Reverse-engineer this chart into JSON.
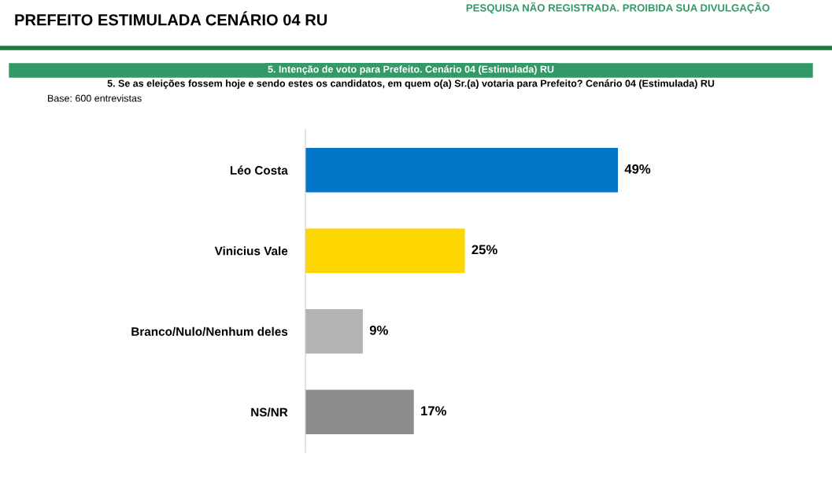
{
  "chart_data": {
    "type": "bar",
    "orientation": "horizontal",
    "title": "PREFEITO ESTIMULADA CENÁRIO 04 RU",
    "subtitle": "5. Intenção de voto para Prefeito. Cenário 04 (Estimulada) RU",
    "annotations": [
      "PESQUISA NÃO REGISTRADA. PROIBIDA SUA DIVULGAÇÃO",
      "5. Se as eleições fossem hoje e sendo estes os candidatos, em quem o(a) Sr.(a) votaria para Prefeito? Cenário 04 (Estimulada) RU",
      "Base: 600 entrevistas"
    ],
    "categories": [
      "Léo Costa",
      "Vinicius Vale",
      "Branco/Nulo/Nenhum deles",
      "NS/NR"
    ],
    "values": [
      49,
      25,
      9,
      17
    ],
    "colors": [
      "#0077c8",
      "#ffd700",
      "#b3b3b3",
      "#8c8c8c"
    ],
    "value_labels": [
      "49%",
      "25%",
      "9%",
      "17%"
    ],
    "grid": false,
    "legend": false
  }
}
